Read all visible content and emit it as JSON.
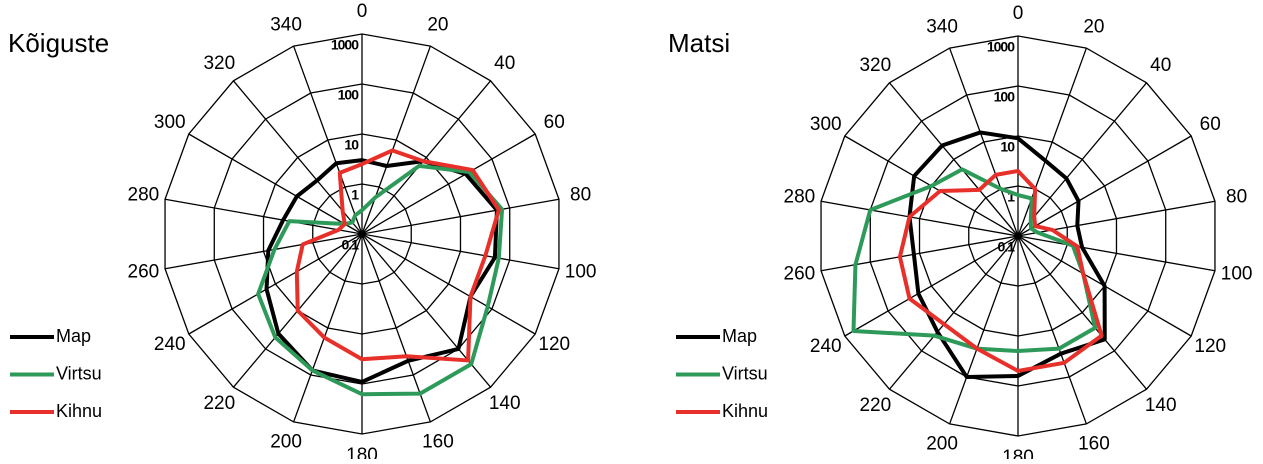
{
  "chart_data": [
    {
      "type": "radar",
      "title": "Kõiguste",
      "log": true,
      "categories": [
        0,
        20,
        40,
        60,
        80,
        100,
        120,
        140,
        160,
        180,
        200,
        220,
        240,
        260,
        280,
        300,
        320,
        340
      ],
      "rlim": [
        0.1,
        1000
      ],
      "rticks": [
        0.1,
        1,
        10,
        100,
        1000
      ],
      "series": [
        {
          "name": "Map",
          "color": "#000000",
          "values": [
            3,
            2.8,
            8,
            25,
            55,
            50,
            32,
            100,
            50,
            91,
            80,
            40,
            16,
            8,
            4,
            3.2,
            2.5,
            3.2
          ]
        },
        {
          "name": "Virtsu",
          "color": "#2e9a5a",
          "values": [
            0.3,
            0.6,
            6,
            30,
            70,
            60,
            80,
            250,
            250,
            160,
            80,
            50,
            25,
            6,
            3,
            0.25,
            0.2,
            0.25
          ]
        },
        {
          "name": "Kihnu",
          "color": "#e8302a",
          "values": [
            2.5,
            6,
            8,
            36,
            60,
            32,
            32,
            200,
            40,
            32,
            16,
            10,
            3.2,
            1.6,
            0.3,
            0.25,
            0.4,
            2
          ]
        }
      ]
    },
    {
      "type": "radar",
      "title": "Matsi",
      "log": true,
      "categories": [
        0,
        20,
        40,
        60,
        80,
        100,
        120,
        140,
        160,
        180,
        200,
        220,
        240,
        260,
        280,
        300,
        320,
        340
      ],
      "rlim": [
        0.1,
        1000
      ],
      "rticks": [
        0.1,
        1,
        10,
        100,
        1000
      ],
      "series": [
        {
          "name": "Map",
          "color": "#000000",
          "values": [
            9,
            4,
            3.2,
            2.5,
            1.6,
            2,
            10,
            50,
            32,
            63,
            100,
            32,
            20,
            13,
            16,
            25,
            23,
            16
          ]
        },
        {
          "name": "Virtsu",
          "color": "#2e9a5a",
          "values": [
            0.66,
            0.63,
            0.25,
            0.2,
            0.25,
            1.3,
            3.2,
            25,
            25,
            20,
            25,
            40,
            630,
            200,
            100,
            10,
            5.5,
            1
          ]
        },
        {
          "name": "Kihnu",
          "color": "#e8302a",
          "values": [
            2,
            1,
            0.32,
            0.25,
            0.5,
            1.6,
            3.2,
            40,
            50,
            50,
            25,
            20,
            32,
            25,
            16,
            6.3,
            1.6,
            2
          ]
        }
      ]
    }
  ]
}
